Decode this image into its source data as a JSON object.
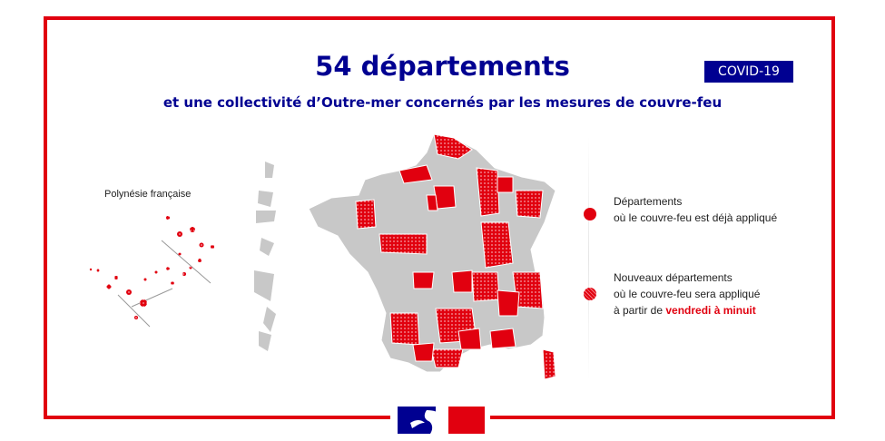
{
  "title": "54 départements",
  "subtitle": "et une collectivité d’Outre-mer concernés par les mesures de couvre-feu",
  "badge": "COVID-19",
  "map": {
    "inset_label": "Polynésie française",
    "colors": {
      "applied": "#e1000f",
      "new": "#e1000f",
      "not_concerned": "#c8c8c8",
      "brand_blue": "#000091"
    }
  },
  "legend": {
    "applied": {
      "line1": "Départements",
      "line2": "où le couvre-feu est déjà appliqué"
    },
    "new": {
      "line1": "Nouveaux départements",
      "line2": "où le couvre-feu sera appliqué",
      "line3_prefix": "à partir de ",
      "line3_highlight": "vendredi à minuit"
    }
  },
  "logo": "marianne-logo"
}
